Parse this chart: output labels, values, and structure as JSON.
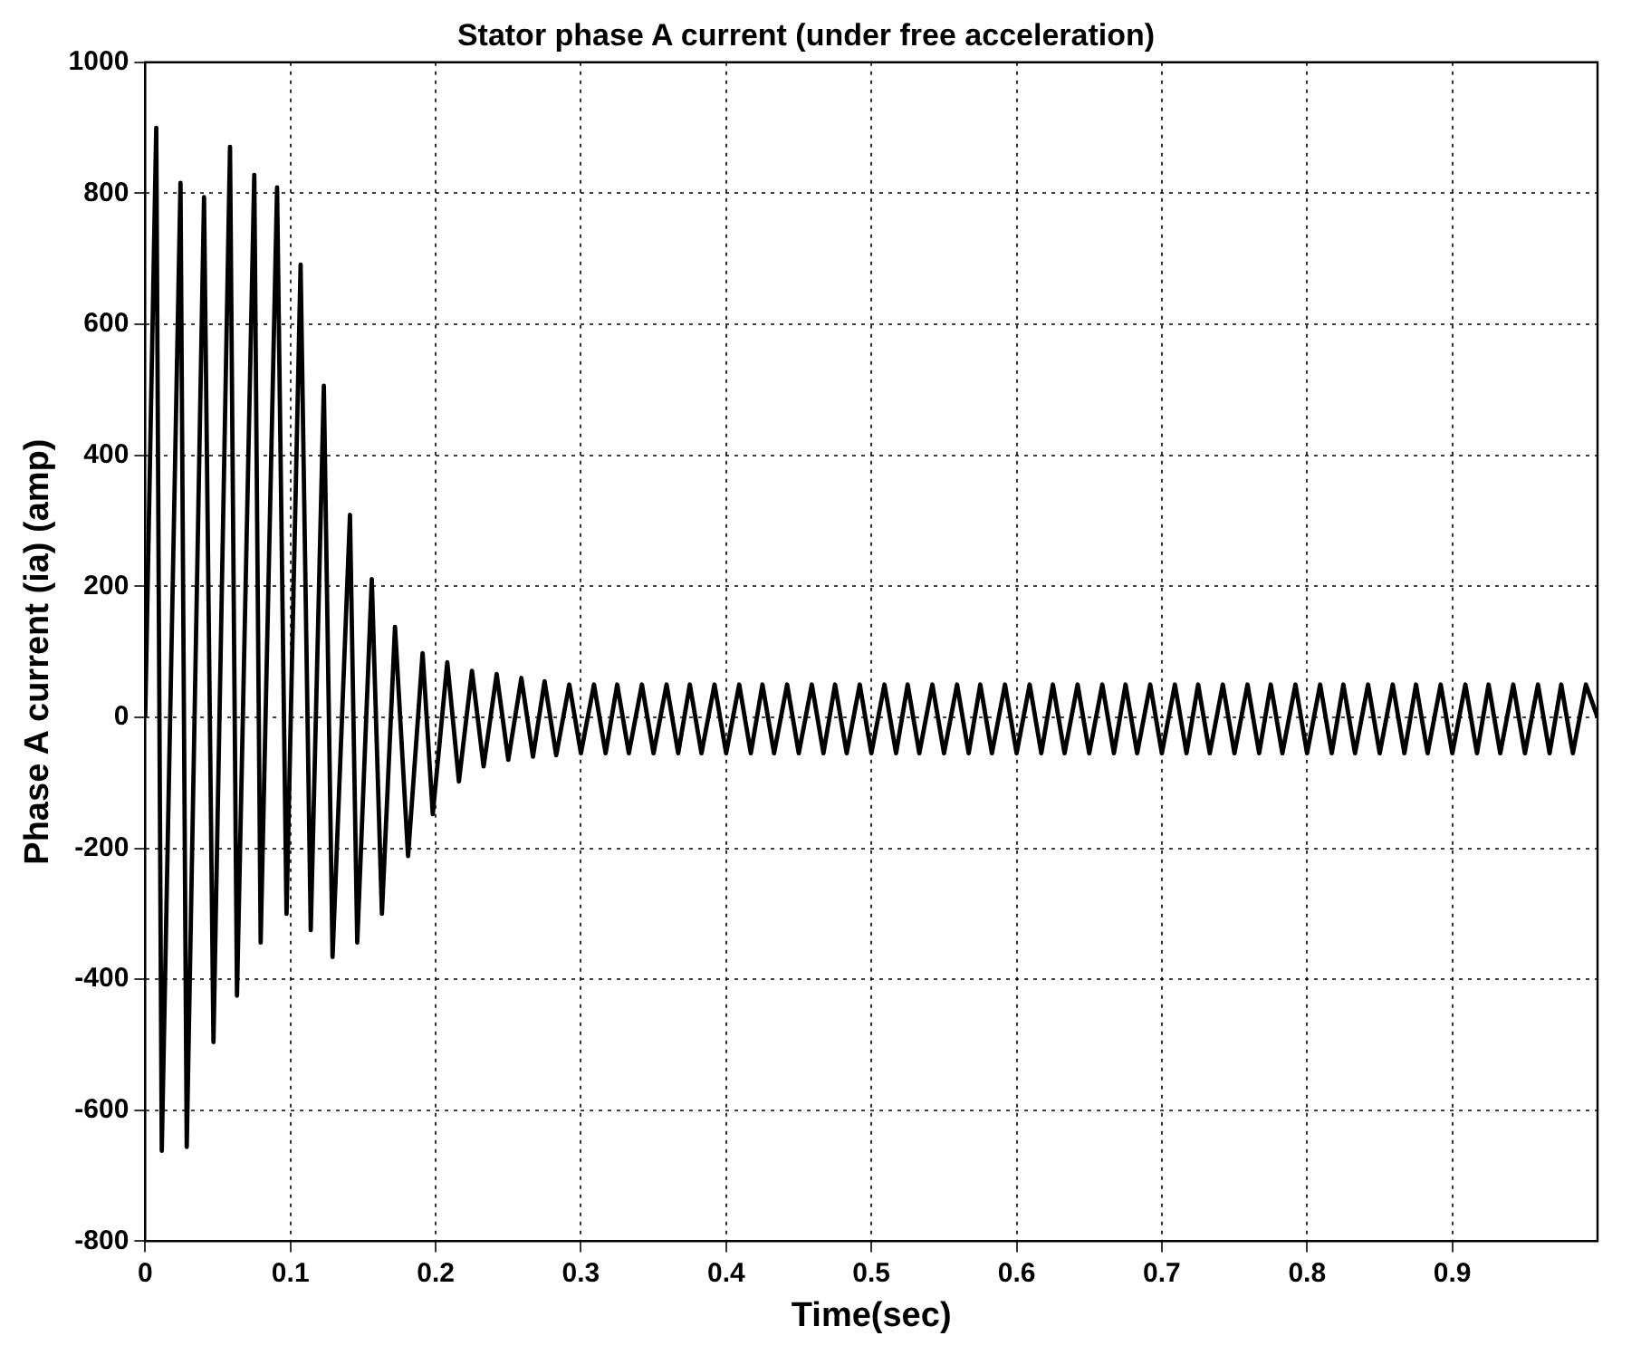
{
  "chart_data": {
    "type": "line",
    "title": "Stator phase A current (under free acceleration)",
    "xlabel": "Time(sec)",
    "ylabel": "Phase A current (ia) (amp)",
    "x": [
      0,
      0.0076,
      0.0114,
      0.0243,
      0.0286,
      0.0405,
      0.047,
      0.0584,
      0.0632,
      0.0751,
      0.0795,
      0.0908,
      0.0973,
      0.107,
      0.114,
      0.123,
      0.129,
      0.141,
      0.146,
      0.156,
      0.163,
      0.172,
      0.181,
      0.191,
      0.198,
      0.208,
      0.216,
      0.225,
      0.233,
      0.242,
      0.25,
      0.259,
      0.267,
      0.275,
      0.283,
      0.292,
      0.3,
      0.309,
      0.317,
      0.325,
      0.333,
      0.342,
      0.35,
      0.359,
      0.367,
      0.375,
      0.383,
      0.392,
      0.4,
      0.409,
      0.417,
      0.425,
      0.433,
      0.442,
      0.45,
      0.459,
      0.467,
      0.475,
      0.483,
      0.492,
      0.5,
      0.509,
      0.517,
      0.525,
      0.533,
      0.542,
      0.55,
      0.559,
      0.567,
      0.575,
      0.583,
      0.592,
      0.6,
      0.609,
      0.617,
      0.625,
      0.633,
      0.642,
      0.65,
      0.659,
      0.667,
      0.675,
      0.683,
      0.692,
      0.7,
      0.709,
      0.717,
      0.725,
      0.733,
      0.742,
      0.75,
      0.759,
      0.767,
      0.775,
      0.783,
      0.792,
      0.8,
      0.809,
      0.817,
      0.825,
      0.833,
      0.842,
      0.85,
      0.859,
      0.867,
      0.875,
      0.883,
      0.892,
      0.9,
      0.909,
      0.917,
      0.925,
      0.933,
      0.942,
      0.95,
      0.959,
      0.967,
      0.975,
      0.983,
      0.992,
      1
    ],
    "series": [
      {
        "color": "#000000",
        "values": [
          0,
          900,
          -662,
          816,
          -656,
          794,
          -496,
          871,
          -425,
          828,
          -344,
          809,
          -300,
          691,
          -325,
          506,
          -366,
          309,
          -344,
          211,
          -300,
          138,
          -212,
          98,
          -148,
          84,
          -98,
          71,
          -75,
          66,
          -65,
          60,
          -60,
          55,
          -58,
          50,
          -55,
          50,
          -55,
          50,
          -55,
          50,
          -55,
          50,
          -55,
          50,
          -55,
          50,
          -55,
          50,
          -55,
          50,
          -55,
          50,
          -55,
          50,
          -55,
          50,
          -55,
          50,
          -55,
          50,
          -55,
          50,
          -55,
          50,
          -55,
          50,
          -55,
          50,
          -55,
          50,
          -55,
          50,
          -55,
          50,
          -55,
          50,
          -55,
          50,
          -55,
          50,
          -55,
          50,
          -55,
          50,
          -55,
          50,
          -55,
          50,
          -55,
          50,
          -55,
          50,
          -55,
          50,
          -55,
          50,
          -55,
          50,
          -55,
          50,
          -55,
          50,
          -55,
          50,
          -55,
          50,
          -55,
          50,
          -55,
          50,
          -55,
          50,
          -55,
          50,
          -55,
          50,
          -55,
          50,
          0
        ]
      }
    ],
    "xlim": [
      0,
      1
    ],
    "xticks": [
      0,
      0.1,
      0.2,
      0.3,
      0.4,
      0.5,
      0.6,
      0.7,
      0.8,
      0.9
    ],
    "ylim": [
      -800,
      1000
    ],
    "yticks": [
      -800,
      -600,
      -400,
      -200,
      0,
      200,
      400,
      600,
      800,
      1000
    ],
    "grid": true,
    "legend": false,
    "marker": "none",
    "line_style": "solid"
  }
}
